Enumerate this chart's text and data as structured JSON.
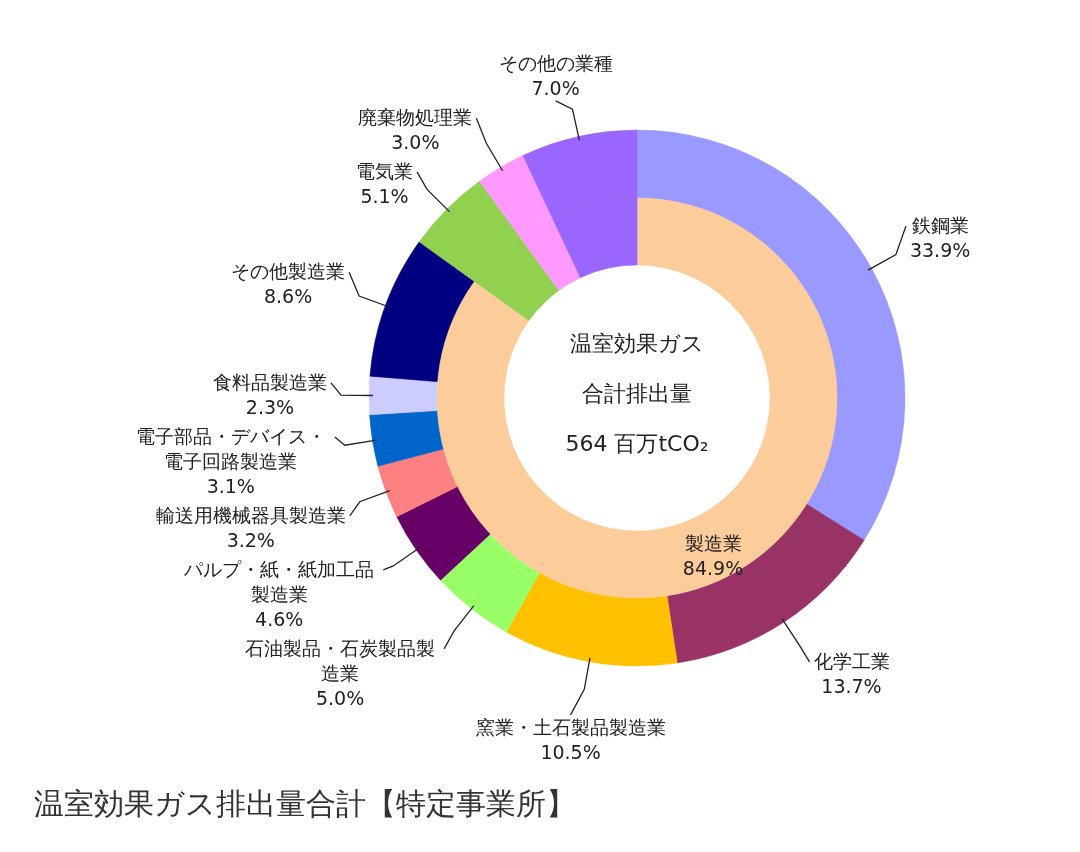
{
  "chart_data": [
    {
      "type": "donut",
      "title": "温室効果ガス排出量合計【特定事業所】",
      "annotations": [
        "温室効果ガス",
        "合計排出量",
        "564 百万tCO₂"
      ],
      "categories": [
        "鉄鋼業",
        "化学工業",
        "窯業・土石製品製造業",
        "石油製品・石炭製品製造業",
        "パルプ・紙・紙加工品製造業",
        "輸送用機械器具製造業",
        "電子部品・デバイス・電子回路製造業",
        "食料品製造業",
        "その他製造業",
        "電気業",
        "廃棄物処理業",
        "その他の業種"
      ],
      "values": [
        33.9,
        13.7,
        10.5,
        5.0,
        4.6,
        3.2,
        3.1,
        2.3,
        8.6,
        5.1,
        3.0,
        7.0
      ],
      "colors": [
        "#9999ff",
        "#993366",
        "#ffc000",
        "#99ff66",
        "#660066",
        "#ff8080",
        "#0066cc",
        "#ccccff",
        "#000080",
        "#92d050",
        "#ff99ff",
        "#9966ff"
      ],
      "value_labels": [
        "33.9%",
        "13.7%",
        "10.5%",
        "5.0%",
        "4.6%",
        "3.2%",
        "3.1%",
        "2.3%",
        "8.6%",
        "5.1%",
        "3.0%",
        "7.0%"
      ]
    },
    {
      "type": "donut",
      "categories": [
        "製造業",
        null,
        null,
        null
      ],
      "values": [
        84.9,
        5.1,
        3.0,
        7.0
      ],
      "colors": [
        "#fccc9a",
        "#92d050",
        "#ff99ff",
        "#9966ff"
      ],
      "value_labels": [
        "84.9%",
        null,
        null,
        null
      ]
    }
  ]
}
